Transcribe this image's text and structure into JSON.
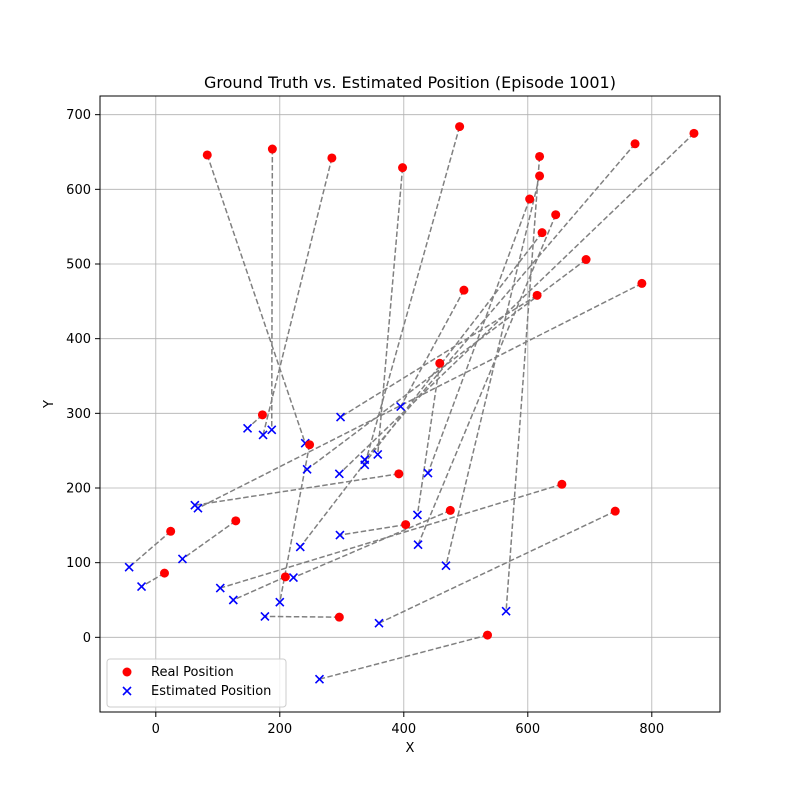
{
  "chart_data": {
    "type": "scatter",
    "title": "Ground Truth vs. Estimated Position (Episode 1001)",
    "xlabel": "X",
    "ylabel": "Y",
    "xlim": [
      -90,
      910
    ],
    "ylim": [
      -100,
      725
    ],
    "xticks": [
      0,
      200,
      400,
      600,
      800
    ],
    "yticks": [
      0,
      100,
      200,
      300,
      400,
      500,
      600,
      700
    ],
    "grid": true,
    "legend_position": "lower-left",
    "colors": {
      "real": "#ff0000",
      "estimated": "#0000ff",
      "connector": "#808080"
    },
    "series": [
      {
        "name": "Real Position",
        "marker": "circle",
        "points": [
          [
            83,
            646
          ],
          [
            188,
            654
          ],
          [
            284,
            642
          ],
          [
            398,
            629
          ],
          [
            490,
            684
          ],
          [
            619,
            644
          ],
          [
            773,
            661
          ],
          [
            868,
            675
          ],
          [
            603,
            587
          ],
          [
            619,
            618
          ],
          [
            645,
            566
          ],
          [
            623,
            542
          ],
          [
            694,
            506
          ],
          [
            497,
            465
          ],
          [
            615,
            458
          ],
          [
            784,
            474
          ],
          [
            458,
            367
          ],
          [
            172,
            298
          ],
          [
            248,
            258
          ],
          [
            392,
            219
          ],
          [
            24,
            142
          ],
          [
            129,
            156
          ],
          [
            403,
            151
          ],
          [
            475,
            170
          ],
          [
            655,
            205
          ],
          [
            14,
            86
          ],
          [
            209,
            81
          ],
          [
            741,
            169
          ],
          [
            296,
            27
          ],
          [
            535,
            3
          ]
        ]
      },
      {
        "name": "Estimated Position",
        "marker": "x",
        "points": [
          [
            241,
            260
          ],
          [
            187,
            278
          ],
          [
            173,
            271
          ],
          [
            358,
            245
          ],
          [
            337,
            231
          ],
          [
            565,
            35
          ],
          [
            337,
            238
          ],
          [
            296,
            219
          ],
          [
            439,
            220
          ],
          [
            468,
            96
          ],
          [
            423,
            124
          ],
          [
            233,
            121
          ],
          [
            244,
            225
          ],
          [
            395,
            309
          ],
          [
            298,
            295
          ],
          [
            68,
            173
          ],
          [
            422,
            164
          ],
          [
            148,
            280
          ],
          [
            200,
            47
          ],
          [
            63,
            177
          ],
          [
            -43,
            94
          ],
          [
            43,
            105
          ],
          [
            297,
            137
          ],
          [
            222,
            80
          ],
          [
            104,
            66
          ],
          [
            -23,
            68
          ],
          [
            125,
            50
          ],
          [
            360,
            19
          ],
          [
            176,
            28
          ],
          [
            264,
            -56
          ]
        ]
      }
    ],
    "pairs": [
      [
        0,
        0
      ],
      [
        1,
        1
      ],
      [
        2,
        2
      ],
      [
        3,
        3
      ],
      [
        4,
        4
      ],
      [
        5,
        5
      ],
      [
        6,
        6
      ],
      [
        7,
        7
      ],
      [
        8,
        8
      ],
      [
        9,
        9
      ],
      [
        10,
        10
      ],
      [
        11,
        11
      ],
      [
        12,
        12
      ],
      [
        13,
        13
      ],
      [
        14,
        14
      ],
      [
        15,
        15
      ],
      [
        16,
        16
      ],
      [
        17,
        17
      ],
      [
        18,
        18
      ],
      [
        19,
        19
      ],
      [
        20,
        20
      ],
      [
        21,
        21
      ],
      [
        22,
        22
      ],
      [
        23,
        23
      ],
      [
        24,
        24
      ],
      [
        25,
        25
      ],
      [
        26,
        26
      ],
      [
        27,
        27
      ],
      [
        28,
        28
      ],
      [
        29,
        29
      ]
    ]
  }
}
